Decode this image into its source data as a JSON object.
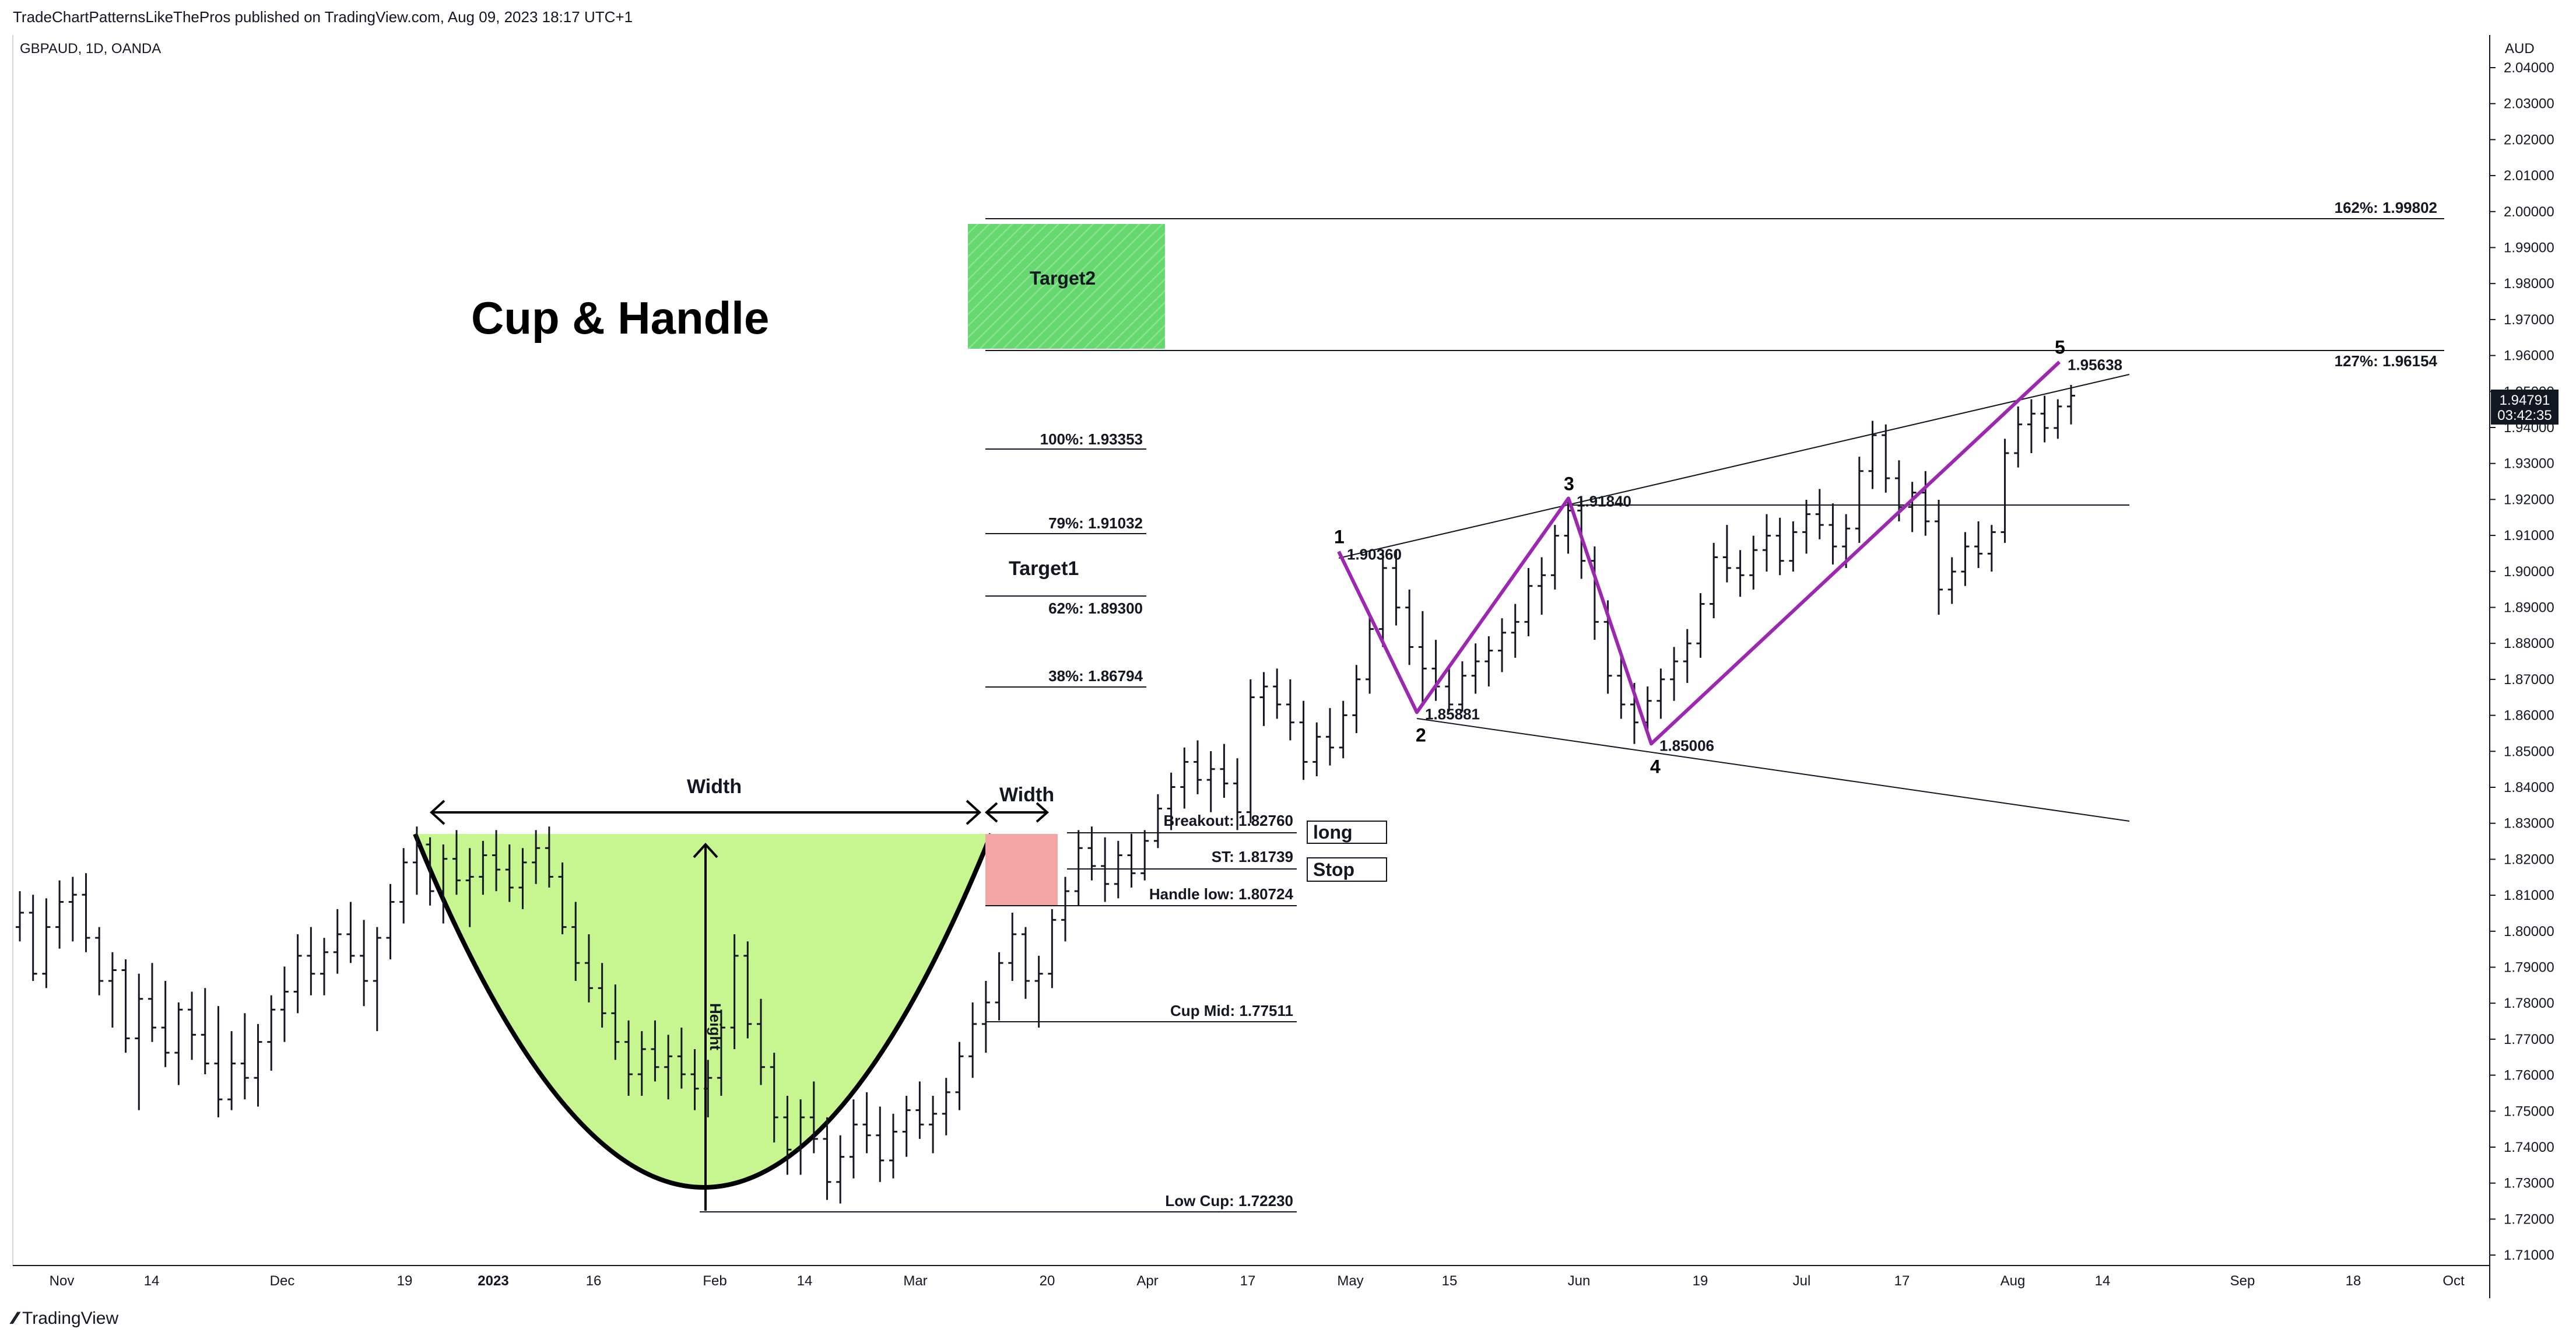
{
  "header": {
    "publisher_line": "TradeChartPatternsLikeThePros published on TradingView.com, Aug 09, 2023 18:17 UTC+1",
    "symbol_line": "GBPAUD, 1D, OANDA",
    "currency": "AUD"
  },
  "footer": {
    "brand": "TradingView"
  },
  "colors": {
    "cup_fill": "#c7f58f",
    "handle_fill": "#f4a6a6",
    "target2_fill": "#66d86f",
    "wave_line": "#9c27b0",
    "bars": "#131722",
    "last_price_bg": "#131722"
  },
  "chart_data": {
    "type": "ohlc",
    "title": "Cup & Handle",
    "x_axis": {
      "ticks": [
        "Nov",
        "14",
        "Dec",
        "19",
        "2023",
        "16",
        "Feb",
        "14",
        "Mar",
        "20",
        "Apr",
        "17",
        "May",
        "15",
        "Jun",
        "19",
        "Jul",
        "17",
        "Aug",
        "14",
        "Sep",
        "18",
        "Oct"
      ]
    },
    "y_axis": {
      "range": [
        1.705,
        2.045
      ],
      "ticks": [
        "1.71000",
        "1.72000",
        "1.73000",
        "1.74000",
        "1.75000",
        "1.76000",
        "1.77000",
        "1.78000",
        "1.79000",
        "1.80000",
        "1.81000",
        "1.82000",
        "1.83000",
        "1.84000",
        "1.85000",
        "1.86000",
        "1.87000",
        "1.88000",
        "1.89000",
        "1.90000",
        "1.91000",
        "1.92000",
        "1.93000",
        "1.94000",
        "1.95000",
        "1.96000",
        "1.97000",
        "1.98000",
        "1.99000",
        "2.00000",
        "2.01000",
        "2.02000",
        "2.03000",
        "2.04000"
      ]
    },
    "last_price": {
      "value": "1.94791",
      "countdown": "03:42:35"
    },
    "levels": [
      {
        "label": "162%: 1.99802",
        "value": 1.99802
      },
      {
        "label": "127%: 1.96154",
        "value": 1.96154
      },
      {
        "label": "100%: 1.93353",
        "value": 1.93353
      },
      {
        "label": "79%: 1.91032",
        "value": 1.91032
      },
      {
        "label": "62%: 1.89300",
        "value": 1.893
      },
      {
        "label": "38%: 1.86794",
        "value": 1.86794
      },
      {
        "label": "Breakout: 1.82760",
        "value": 1.8276
      },
      {
        "label": "ST: 1.81739",
        "value": 1.81739
      },
      {
        "label": "Handle low: 1.80724",
        "value": 1.80724
      },
      {
        "label": "Cup Mid: 1.77511",
        "value": 1.77511
      },
      {
        "label": "Low Cup: 1.72230",
        "value": 1.7223
      }
    ],
    "annotations": {
      "target1": "Target1",
      "target2": "Target2",
      "long": "long",
      "stop": "Stop",
      "cup_width": "Width",
      "handle_width": "Width",
      "height": "Height"
    },
    "wave_points": [
      {
        "label": "1",
        "date": "2023-05-01",
        "price": 1.9036,
        "price_label": "1.90360"
      },
      {
        "label": "2",
        "date": "2023-05-12",
        "price": 1.85881,
        "price_label": "1.85881"
      },
      {
        "label": "3",
        "date": "2023-05-30",
        "price": 1.9184,
        "price_label": "1.91840"
      },
      {
        "label": "4",
        "date": "2023-06-12",
        "price": 1.85006,
        "price_label": "1.85006"
      },
      {
        "label": "5",
        "date": "2023-08-07",
        "price": 1.95638,
        "price_label": "1.95638"
      }
    ],
    "price_series_daily": [
      [
        1.799,
        1.809,
        1.795,
        1.803
      ],
      [
        1.803,
        1.808,
        1.784,
        1.786
      ],
      [
        1.786,
        1.807,
        1.782,
        1.799
      ],
      [
        1.799,
        1.812,
        1.793,
        1.806
      ],
      [
        1.806,
        1.813,
        1.795,
        1.808
      ],
      [
        1.808,
        1.814,
        1.792,
        1.796
      ],
      [
        1.796,
        1.799,
        1.78,
        1.784
      ],
      [
        1.784,
        1.792,
        1.771,
        1.787
      ],
      [
        1.787,
        1.79,
        1.764,
        1.768
      ],
      [
        1.768,
        1.786,
        1.748,
        1.779
      ],
      [
        1.779,
        1.789,
        1.767,
        1.771
      ],
      [
        1.771,
        1.784,
        1.76,
        1.764
      ],
      [
        1.764,
        1.778,
        1.755,
        1.776
      ],
      [
        1.776,
        1.781,
        1.762,
        1.769
      ],
      [
        1.769,
        1.782,
        1.758,
        1.761
      ],
      [
        1.761,
        1.777,
        1.746,
        1.751
      ],
      [
        1.751,
        1.77,
        1.748,
        1.761
      ],
      [
        1.761,
        1.775,
        1.751,
        1.757
      ],
      [
        1.757,
        1.772,
        1.749,
        1.767
      ],
      [
        1.767,
        1.78,
        1.759,
        1.776
      ],
      [
        1.776,
        1.788,
        1.767,
        1.781
      ],
      [
        1.781,
        1.797,
        1.775,
        1.791
      ],
      [
        1.791,
        1.799,
        1.78,
        1.786
      ],
      [
        1.786,
        1.796,
        1.78,
        1.792
      ],
      [
        1.792,
        1.804,
        1.786,
        1.797
      ],
      [
        1.797,
        1.806,
        1.789,
        1.791
      ],
      [
        1.791,
        1.801,
        1.777,
        1.784
      ],
      [
        1.784,
        1.799,
        1.77,
        1.796
      ],
      [
        1.796,
        1.811,
        1.79,
        1.806
      ],
      [
        1.806,
        1.821,
        1.8,
        1.817
      ],
      [
        1.817,
        1.827,
        1.808,
        1.822
      ],
      [
        1.822,
        1.824,
        1.805,
        1.809
      ],
      [
        1.809,
        1.822,
        1.8,
        1.818
      ],
      [
        1.818,
        1.826,
        1.808,
        1.812
      ],
      [
        1.812,
        1.821,
        1.799,
        1.813
      ],
      [
        1.813,
        1.823,
        1.808,
        1.819
      ],
      [
        1.819,
        1.826,
        1.809,
        1.815
      ],
      [
        1.815,
        1.822,
        1.806,
        1.81
      ],
      [
        1.81,
        1.821,
        1.804,
        1.817
      ],
      [
        1.817,
        1.826,
        1.811,
        1.821
      ],
      [
        1.821,
        1.827,
        1.81,
        1.813
      ],
      [
        1.813,
        1.817,
        1.797,
        1.799
      ],
      [
        1.799,
        1.806,
        1.784,
        1.789
      ],
      [
        1.789,
        1.797,
        1.778,
        1.782
      ],
      [
        1.782,
        1.789,
        1.771,
        1.775
      ],
      [
        1.775,
        1.783,
        1.762,
        1.767
      ],
      [
        1.767,
        1.773,
        1.752,
        1.758
      ],
      [
        1.758,
        1.77,
        1.752,
        1.765
      ],
      [
        1.765,
        1.773,
        1.756,
        1.76
      ],
      [
        1.76,
        1.769,
        1.751,
        1.763
      ],
      [
        1.763,
        1.771,
        1.754,
        1.758
      ],
      [
        1.758,
        1.765,
        1.748,
        1.754
      ],
      [
        1.754,
        1.762,
        1.746,
        1.757
      ],
      [
        1.757,
        1.776,
        1.752,
        1.771
      ],
      [
        1.771,
        1.797,
        1.765,
        1.791
      ],
      [
        1.791,
        1.795,
        1.768,
        1.772
      ],
      [
        1.772,
        1.779,
        1.755,
        1.76
      ],
      [
        1.76,
        1.764,
        1.739,
        1.746
      ],
      [
        1.746,
        1.752,
        1.73,
        1.737
      ],
      [
        1.737,
        1.751,
        1.73,
        1.746
      ],
      [
        1.746,
        1.756,
        1.736,
        1.74
      ],
      [
        1.74,
        1.746,
        1.723,
        1.728
      ],
      [
        1.728,
        1.741,
        1.722,
        1.735
      ],
      [
        1.735,
        1.751,
        1.729,
        1.744
      ],
      [
        1.744,
        1.753,
        1.736,
        1.741
      ],
      [
        1.741,
        1.749,
        1.728,
        1.734
      ],
      [
        1.734,
        1.747,
        1.729,
        1.742
      ],
      [
        1.742,
        1.752,
        1.735,
        1.748
      ],
      [
        1.748,
        1.756,
        1.74,
        1.744
      ],
      [
        1.744,
        1.752,
        1.736,
        1.747
      ],
      [
        1.747,
        1.757,
        1.741,
        1.753
      ],
      [
        1.753,
        1.767,
        1.748,
        1.763
      ],
      [
        1.763,
        1.778,
        1.757,
        1.772
      ],
      [
        1.772,
        1.784,
        1.764,
        1.778
      ],
      [
        1.778,
        1.792,
        1.773,
        1.789
      ],
      [
        1.789,
        1.803,
        1.784,
        1.797
      ],
      [
        1.797,
        1.799,
        1.779,
        1.784
      ],
      [
        1.784,
        1.791,
        1.771,
        1.786
      ],
      [
        1.786,
        1.804,
        1.782,
        1.801
      ],
      [
        1.801,
        1.813,
        1.795,
        1.809
      ],
      [
        1.809,
        1.826,
        1.805,
        1.821
      ],
      [
        1.821,
        1.827,
        1.812,
        1.816
      ],
      [
        1.816,
        1.824,
        1.806,
        1.811
      ],
      [
        1.811,
        1.823,
        1.807,
        1.819
      ],
      [
        1.819,
        1.825,
        1.81,
        1.814
      ],
      [
        1.814,
        1.826,
        1.812,
        1.823
      ],
      [
        1.823,
        1.836,
        1.821,
        1.832
      ],
      [
        1.832,
        1.842,
        1.826,
        1.838
      ],
      [
        1.838,
        1.849,
        1.832,
        1.845
      ],
      [
        1.845,
        1.851,
        1.836,
        1.84
      ],
      [
        1.84,
        1.848,
        1.831,
        1.843
      ],
      [
        1.843,
        1.85,
        1.835,
        1.839
      ],
      [
        1.839,
        1.846,
        1.826,
        1.831
      ],
      [
        1.831,
        1.868,
        1.828,
        1.863
      ],
      [
        1.863,
        1.87,
        1.855,
        1.866
      ],
      [
        1.866,
        1.871,
        1.857,
        1.861
      ],
      [
        1.861,
        1.868,
        1.851,
        1.856
      ],
      [
        1.856,
        1.862,
        1.84,
        1.845
      ],
      [
        1.845,
        1.856,
        1.841,
        1.852
      ],
      [
        1.852,
        1.86,
        1.844,
        1.849
      ],
      [
        1.849,
        1.862,
        1.846,
        1.858
      ],
      [
        1.858,
        1.872,
        1.853,
        1.868
      ],
      [
        1.868,
        1.886,
        1.864,
        1.882
      ],
      [
        1.882,
        1.904,
        1.877,
        1.899
      ],
      [
        1.899,
        1.904,
        1.883,
        1.888
      ],
      [
        1.888,
        1.893,
        1.872,
        1.877
      ],
      [
        1.877,
        1.887,
        1.861,
        1.871
      ],
      [
        1.871,
        1.879,
        1.862,
        1.866
      ],
      [
        1.866,
        1.871,
        1.859,
        1.861
      ],
      [
        1.861,
        1.873,
        1.859,
        1.869
      ],
      [
        1.869,
        1.878,
        1.864,
        1.873
      ],
      [
        1.873,
        1.88,
        1.866,
        1.876
      ],
      [
        1.876,
        1.885,
        1.87,
        1.881
      ],
      [
        1.881,
        1.889,
        1.874,
        1.884
      ],
      [
        1.884,
        1.899,
        1.88,
        1.894
      ],
      [
        1.894,
        1.902,
        1.886,
        1.897
      ],
      [
        1.897,
        1.911,
        1.893,
        1.908
      ],
      [
        1.908,
        1.918,
        1.903,
        1.915
      ],
      [
        1.915,
        1.918,
        1.896,
        1.901
      ],
      [
        1.901,
        1.905,
        1.879,
        1.884
      ],
      [
        1.884,
        1.89,
        1.864,
        1.869
      ],
      [
        1.869,
        1.875,
        1.857,
        1.861
      ],
      [
        1.861,
        1.867,
        1.85,
        1.856
      ],
      [
        1.856,
        1.866,
        1.853,
        1.862
      ],
      [
        1.862,
        1.871,
        1.857,
        1.868
      ],
      [
        1.868,
        1.877,
        1.862,
        1.873
      ],
      [
        1.873,
        1.882,
        1.867,
        1.878
      ],
      [
        1.878,
        1.892,
        1.874,
        1.889
      ],
      [
        1.889,
        1.906,
        1.885,
        1.902
      ],
      [
        1.902,
        1.911,
        1.895,
        1.899
      ],
      [
        1.899,
        1.904,
        1.891,
        1.897
      ],
      [
        1.897,
        1.908,
        1.893,
        1.904
      ],
      [
        1.904,
        1.914,
        1.898,
        1.908
      ],
      [
        1.908,
        1.913,
        1.897,
        1.901
      ],
      [
        1.901,
        1.912,
        1.898,
        1.909
      ],
      [
        1.909,
        1.918,
        1.903,
        1.914
      ],
      [
        1.914,
        1.921,
        1.907,
        1.911
      ],
      [
        1.911,
        1.917,
        1.9,
        1.905
      ],
      [
        1.905,
        1.914,
        1.899,
        1.91
      ],
      [
        1.91,
        1.93,
        1.906,
        1.926
      ],
      [
        1.926,
        1.94,
        1.921,
        1.936
      ],
      [
        1.936,
        1.939,
        1.92,
        1.924
      ],
      [
        1.924,
        1.929,
        1.912,
        1.916
      ],
      [
        1.916,
        1.923,
        1.909,
        1.92
      ],
      [
        1.92,
        1.926,
        1.908,
        1.912
      ],
      [
        1.912,
        1.918,
        1.886,
        1.893
      ],
      [
        1.893,
        1.902,
        1.889,
        1.898
      ],
      [
        1.898,
        1.909,
        1.894,
        1.905
      ],
      [
        1.905,
        1.912,
        1.899,
        1.903
      ],
      [
        1.903,
        1.911,
        1.898,
        1.909
      ],
      [
        1.909,
        1.935,
        1.906,
        1.931
      ],
      [
        1.931,
        1.944,
        1.927,
        1.939
      ],
      [
        1.939,
        1.946,
        1.931,
        1.942
      ],
      [
        1.942,
        1.947,
        1.934,
        1.938
      ],
      [
        1.938,
        1.946,
        1.935,
        1.944
      ],
      [
        1.944,
        1.95,
        1.939,
        1.947
      ]
    ]
  }
}
